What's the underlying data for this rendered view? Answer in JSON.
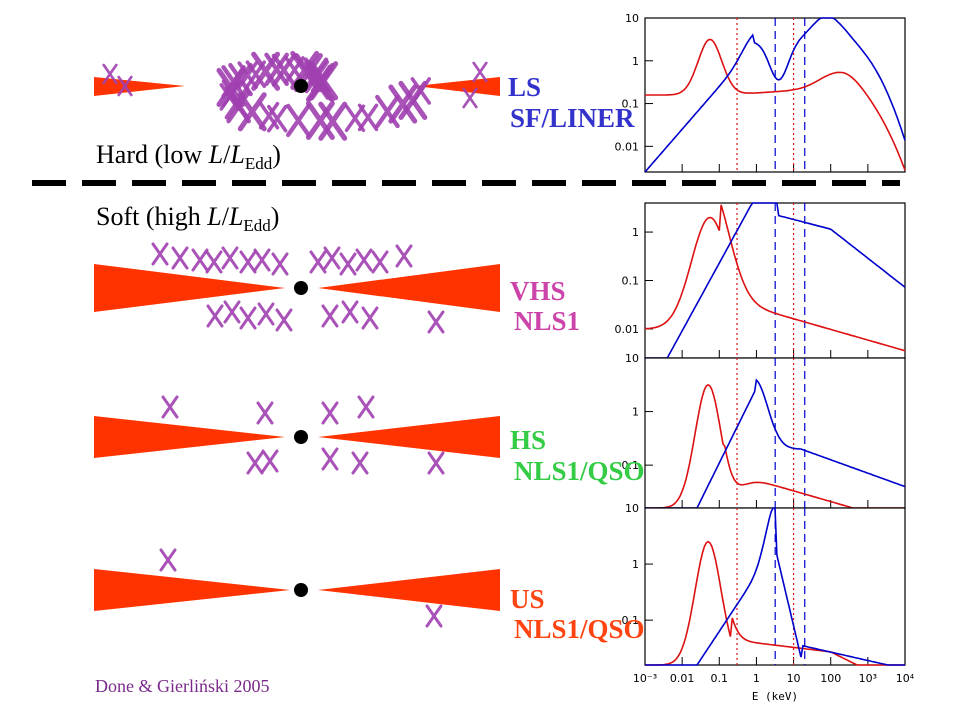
{
  "colors": {
    "disk": "#ff3300",
    "corona": "#a040b0",
    "corona_light": "#d9a8e0",
    "blue_curve": "#0000cc",
    "red_curve": "#dd1111",
    "ls": "#3333cc",
    "vhs": "#cc44aa",
    "hs": "#33cc44",
    "us": "#ff4411",
    "cite": "#7a2a8a"
  },
  "states": [
    {
      "state": "LS",
      "class": "SF/LINER",
      "color": "#3333cc"
    },
    {
      "state": "VHS",
      "class": "NLS1",
      "color": "#cc44aa"
    },
    {
      "state": "HS",
      "class": "NLS1/QSO",
      "color": "#33cc44"
    },
    {
      "state": "US",
      "class": "NLS1/QSO",
      "color": "#ff4411"
    }
  ],
  "regimes": {
    "hard": {
      "prefix": "Hard (low ",
      "L": "L",
      "slash": "/",
      "L2": "L",
      "sub": "Edd",
      "suffix": ")"
    },
    "soft": {
      "prefix": "Soft (high ",
      "L": "L",
      "slash": "/",
      "L2": "L",
      "sub": "Edd",
      "suffix": ")"
    }
  },
  "citation": "Done & Gierliński 2005",
  "spectra_axes": {
    "y_ticks_top": [
      "10",
      "1",
      "0.1",
      "0.01"
    ],
    "y_ticks_mid": [
      "1",
      "0.1",
      "0.01"
    ],
    "y_ticks_hs": [
      "10",
      "1",
      "0.1"
    ],
    "y_ticks_us": [
      "10",
      "1",
      "0.1"
    ],
    "x_ticks": [
      "10⁻³",
      "0.01",
      "0.1",
      "1",
      "10",
      "100",
      "10³",
      "10⁴"
    ],
    "x_label": "E (keV)"
  }
}
